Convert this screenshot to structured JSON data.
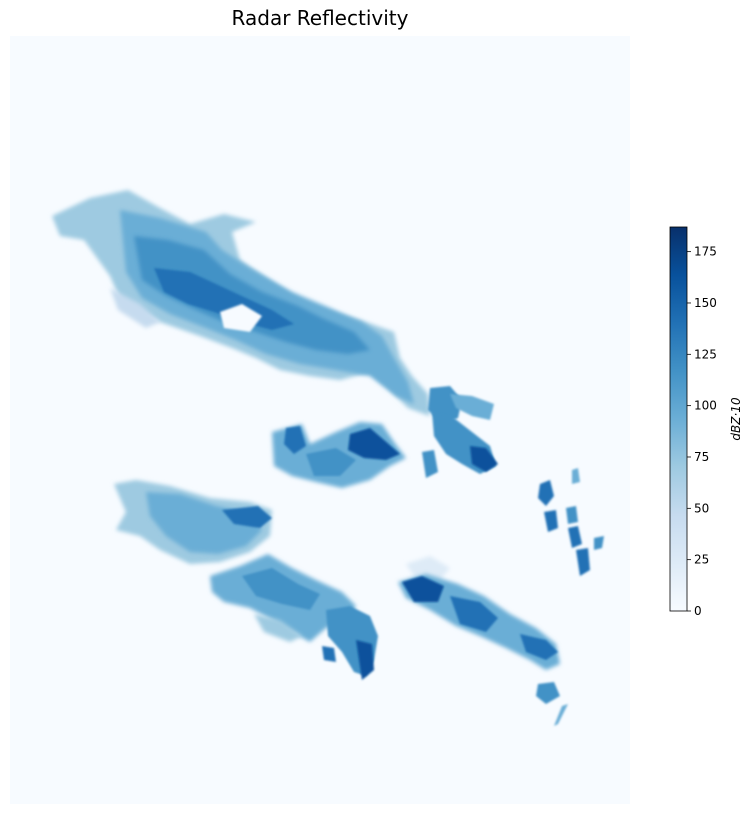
{
  "chart_data": {
    "type": "heatmap",
    "title": "Radar Reflectivity",
    "xlabel": "",
    "ylabel": "",
    "colormap": [
      "#f7fbff",
      "#deebf7",
      "#c6dbef",
      "#9ecae1",
      "#6baed6",
      "#4292c6",
      "#2171b5",
      "#08519c",
      "#08306b"
    ],
    "colorbar": {
      "label": "dBZ·10",
      "range": [
        0,
        187
      ],
      "ticks": [
        0,
        25,
        50,
        75,
        100,
        125,
        150,
        175
      ]
    },
    "axes_visible": false
  }
}
